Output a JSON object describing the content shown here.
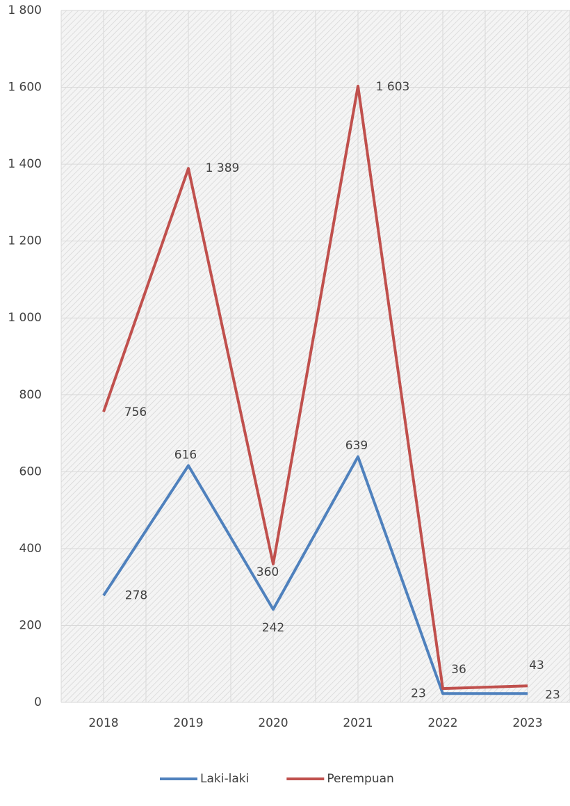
{
  "chart_data": {
    "type": "line",
    "categories": [
      "2018",
      "2019",
      "2020",
      "2021",
      "2022",
      "2023"
    ],
    "series": [
      {
        "name": "Laki-laki",
        "color": "#4f81bd",
        "values": [
          278,
          616,
          242,
          639,
          23,
          23
        ]
      },
      {
        "name": "Perempuan",
        "color": "#c0504d",
        "values": [
          756,
          1389,
          360,
          1603,
          36,
          43
        ],
        "value_labels": [
          "756",
          "1 389",
          "360",
          "1 603",
          "36",
          "43"
        ]
      }
    ],
    "ylim": [
      0,
      1800
    ],
    "yticks": [
      0,
      200,
      400,
      600,
      800,
      {
        "value": 1000,
        "label": "1 000"
      },
      {
        "value": 1200,
        "label": "1 200"
      },
      {
        "value": 1400,
        "label": "1 400"
      },
      {
        "value": 1600,
        "label": "1 600"
      },
      {
        "value": 1800,
        "label": "1 800"
      }
    ],
    "grid": true,
    "legend": "bottom"
  }
}
